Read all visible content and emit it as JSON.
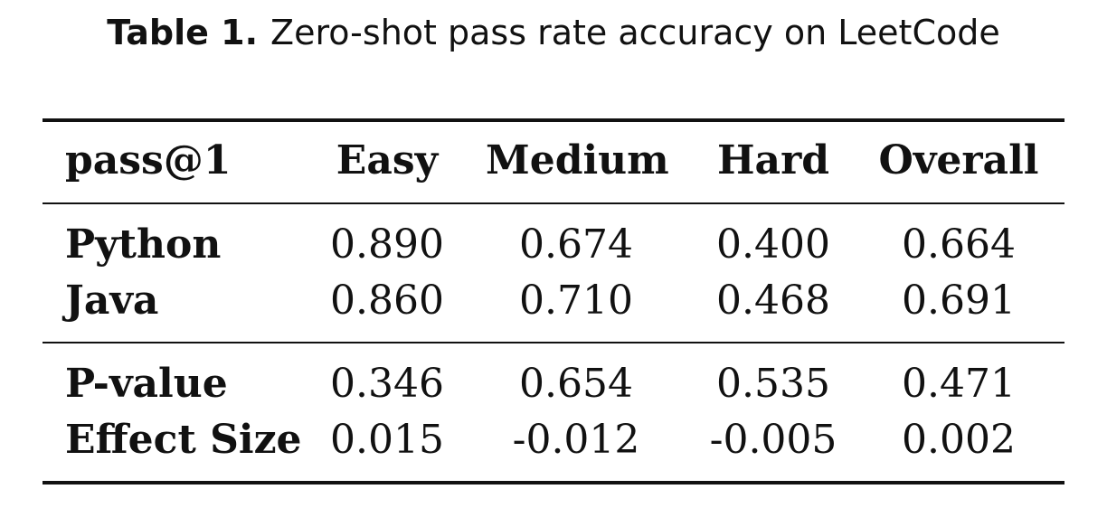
{
  "caption": {
    "label": "Table 1.",
    "text": "Zero-shot pass rate accuracy on LeetCode"
  },
  "table": {
    "headers": [
      "pass@1",
      "Easy",
      "Medium",
      "Hard",
      "Overall"
    ],
    "rows": [
      {
        "label": "Python",
        "values": [
          "0.890",
          "0.674",
          "0.400",
          "0.664"
        ]
      },
      {
        "label": "Java",
        "values": [
          "0.860",
          "0.710",
          "0.468",
          "0.691"
        ]
      },
      {
        "label": "P-value",
        "values": [
          "0.346",
          "0.654",
          "0.535",
          "0.471"
        ]
      },
      {
        "label": "Effect Size",
        "values": [
          "0.015",
          "-0.012",
          "-0.005",
          "0.002"
        ]
      }
    ]
  }
}
